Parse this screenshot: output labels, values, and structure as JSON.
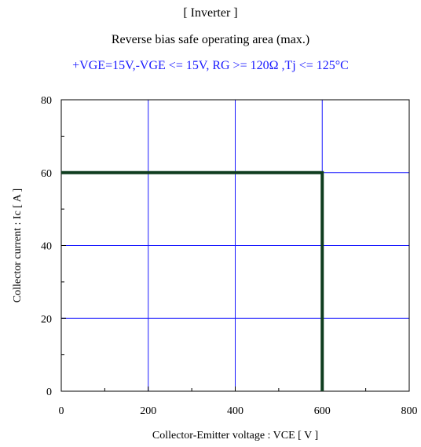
{
  "header": {
    "title": "[ Inverter ]",
    "subtitle": "Reverse bias safe operating area (max.)",
    "conditions": "+VGE=15V,-VGE <= 15V, RG >= 120Ω ,Tj <= 125°C",
    "conditions_color": "#1a1aff"
  },
  "chart_data": {
    "type": "line",
    "xlabel": "Collector-Emitter voltage : VCE [ V ]",
    "ylabel": "Collector current : Ic [ A ]",
    "xlim": [
      0,
      800
    ],
    "ylim": [
      0,
      80
    ],
    "xticks": [
      0,
      200,
      400,
      600,
      800
    ],
    "yticks": [
      0,
      20,
      40,
      60,
      80
    ],
    "grid": true,
    "grid_color": "#1a1aff",
    "series": [
      {
        "color": "#0f3d1f",
        "x": [
          0,
          600,
          600
        ],
        "y": [
          60,
          60,
          0
        ]
      }
    ]
  }
}
